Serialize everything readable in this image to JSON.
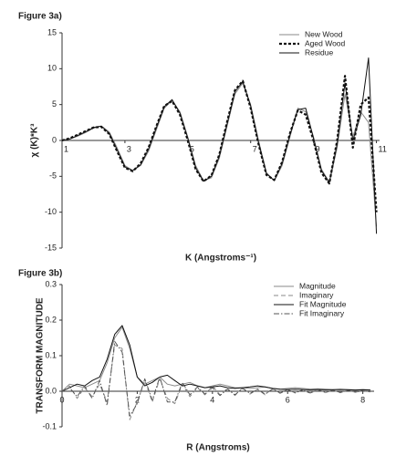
{
  "chart_data": [
    {
      "type": "line",
      "title": "Figure 3a)",
      "x_label": "K (Angstroms⁻¹)",
      "y_label": "χ (K)*K³",
      "x": [
        1,
        1.25,
        1.5,
        1.75,
        2,
        2.25,
        2.5,
        2.75,
        3,
        3.25,
        3.5,
        3.75,
        4,
        4.25,
        4.5,
        4.75,
        5,
        5.25,
        5.5,
        5.75,
        6,
        6.25,
        6.5,
        6.75,
        7,
        7.25,
        7.5,
        7.75,
        8,
        8.25,
        8.5,
        8.75,
        9,
        9.25,
        9.5,
        9.75,
        10,
        10.25,
        10.5,
        10.75,
        11
      ],
      "series": [
        {
          "name": "New Wood",
          "color": "#8a8a8a",
          "style": "solid",
          "values": [
            0,
            0.2,
            0.6,
            1.1,
            1.7,
            2.0,
            1.2,
            -1.0,
            -3.5,
            -4.2,
            -3.5,
            -1.5,
            1.5,
            4.5,
            5.6,
            4.0,
            0.5,
            -3.5,
            -5.6,
            -5.2,
            -2.5,
            2.0,
            6.5,
            8.0,
            5.0,
            0,
            -4.5,
            -5.6,
            -3.5,
            0.5,
            4.5,
            4.0,
            0.5,
            -4.0,
            -5.8,
            -1.0,
            6.5,
            0.5,
            4.0,
            2.5,
            -12
          ]
        },
        {
          "name": "Aged Wood",
          "color": "#111111",
          "style": "bold-dashed",
          "values": [
            0,
            0.3,
            0.8,
            1.3,
            1.8,
            1.9,
            0.9,
            -1.5,
            -3.8,
            -4.3,
            -3.2,
            -1.0,
            2.0,
            4.8,
            5.5,
            3.6,
            0,
            -4.0,
            -5.7,
            -4.9,
            -2.0,
            2.6,
            7.0,
            8.3,
            4.5,
            -0.5,
            -4.8,
            -5.5,
            -3.0,
            1.0,
            4.2,
            3.6,
            0,
            -4.5,
            -6.0,
            0,
            9.0,
            -1.0,
            5.0,
            6.0,
            -10
          ]
        },
        {
          "name": "Residue",
          "color": "#111111",
          "style": "solid",
          "values": [
            0,
            0.2,
            0.7,
            1.2,
            1.8,
            2.0,
            1.0,
            -1.3,
            -3.7,
            -4.2,
            -3.4,
            -1.2,
            1.8,
            4.7,
            5.7,
            3.8,
            0.3,
            -3.8,
            -5.7,
            -5.0,
            -2.2,
            2.3,
            6.8,
            8.2,
            4.8,
            -0.3,
            -4.6,
            -5.6,
            -3.2,
            0.8,
            4.3,
            4.5,
            0.3,
            -4.2,
            -5.9,
            -0.5,
            8.0,
            0,
            3.5,
            11.5,
            -13
          ]
        }
      ],
      "xlim": [
        1,
        11.1
      ],
      "xticks": [
        1,
        3,
        5,
        7,
        9,
        11
      ],
      "ylim": [
        -15,
        15
      ],
      "yticks": [
        -15,
        -10,
        -5,
        0,
        5,
        10,
        15
      ],
      "grid": false,
      "legend": "upper right"
    },
    {
      "type": "line",
      "title": "Figure 3b)",
      "x_label": "R (Angstroms)",
      "y_label": "TRANSFORM MAGNITUDE",
      "x": [
        0,
        0.2,
        0.4,
        0.6,
        0.8,
        1,
        1.2,
        1.4,
        1.6,
        1.8,
        2,
        2.2,
        2.4,
        2.6,
        2.8,
        3,
        3.2,
        3.4,
        3.6,
        3.8,
        4,
        4.2,
        4.4,
        4.6,
        4.8,
        5,
        5.2,
        5.4,
        5.6,
        5.8,
        6,
        6.2,
        6.4,
        6.6,
        6.8,
        7,
        7.2,
        7.4,
        7.6,
        7.8,
        8,
        8.2
      ],
      "series": [
        {
          "name": "Magnitude",
          "color": "#8a8a8a",
          "style": "solid",
          "values": [
            0,
            0.02,
            0.015,
            0.01,
            0.02,
            0.03,
            0.08,
            0.15,
            0.18,
            0.12,
            0.04,
            0.02,
            0.03,
            0.04,
            0.02,
            0.015,
            0.02,
            0.025,
            0.015,
            0.01,
            0.015,
            0.02,
            0.015,
            0.01,
            0.01,
            0.008,
            0.01,
            0.012,
            0.008,
            0.006,
            0.008,
            0.01,
            0.008,
            0.006,
            0.007,
            0.006,
            0.005,
            0.006,
            0.005,
            0.004,
            0.005,
            0.004
          ]
        },
        {
          "name": "Imaginary",
          "color": "#8a8a8a",
          "style": "dashed",
          "values": [
            0,
            0.015,
            -0.02,
            0.01,
            -0.015,
            0.02,
            -0.03,
            0.13,
            0.12,
            -0.08,
            -0.03,
            0.03,
            -0.03,
            0.035,
            -0.02,
            -0.035,
            0.02,
            -0.015,
            0.01,
            -0.01,
            0.015,
            -0.01,
            0.008,
            -0.012,
            0.01,
            -0.008,
            0.006,
            -0.01,
            0.008,
            -0.006,
            0.005,
            -0.005,
            0.004,
            -0.006,
            0.005,
            -0.004,
            0.003,
            -0.004,
            0.003,
            -0.003,
            0.002,
            -0.002
          ]
        },
        {
          "name": "Fit Magnitude",
          "color": "#111111",
          "style": "solid",
          "values": [
            0,
            0.01,
            0.02,
            0.015,
            0.03,
            0.04,
            0.09,
            0.16,
            0.185,
            0.13,
            0.04,
            0.015,
            0.025,
            0.04,
            0.045,
            0.03,
            0.015,
            0.02,
            0.015,
            0.01,
            0.012,
            0.015,
            0.01,
            0.008,
            0.01,
            0.012,
            0.015,
            0.012,
            0.008,
            0.006,
            0.005,
            0.006,
            0.005,
            0.004,
            0.005,
            0.004,
            0.004,
            0.005,
            0.004,
            0.003,
            0.004,
            0.003
          ]
        },
        {
          "name": "Fit Imaginary",
          "color": "#555555",
          "style": "dashdot",
          "values": [
            0,
            0.01,
            -0.015,
            0.015,
            -0.02,
            0.03,
            -0.04,
            0.14,
            0.11,
            -0.07,
            -0.035,
            0.035,
            -0.025,
            0.04,
            -0.03,
            -0.03,
            0.025,
            -0.01,
            0.012,
            -0.008,
            0.01,
            -0.012,
            0.006,
            -0.01,
            0.008,
            -0.006,
            0.005,
            -0.008,
            0.006,
            -0.005,
            0.004,
            -0.004,
            0.003,
            -0.005,
            0.004,
            -0.003,
            0.002,
            -0.003,
            0.002,
            -0.002,
            0.001,
            -0.001
          ]
        }
      ],
      "xlim": [
        0,
        8.3
      ],
      "xticks": [
        0,
        2,
        4,
        6,
        8
      ],
      "ylim": [
        -0.1,
        0.3
      ],
      "yticks": [
        -0.1,
        {
          "value": 0,
          "label": "0.0"
        },
        0.1,
        0.2,
        0.3
      ],
      "grid": false,
      "legend": "upper right"
    }
  ]
}
